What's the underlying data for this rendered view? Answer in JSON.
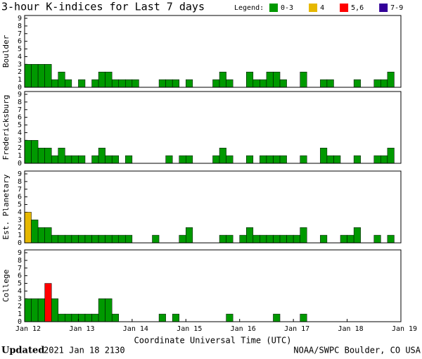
{
  "header": {
    "title": "3-hour K-indices for Last 7 days",
    "legend_label": "Legend:",
    "legend": [
      {
        "label": "0-3",
        "color": "#009900",
        "range": [
          0,
          3
        ]
      },
      {
        "label": "4",
        "color": "#e6b800",
        "range": [
          4,
          4
        ]
      },
      {
        "label": "5,6",
        "color": "#ff0000",
        "range": [
          5,
          6
        ]
      },
      {
        "label": "7-9",
        "color": "#330099",
        "range": [
          7,
          9
        ]
      }
    ]
  },
  "chart_data": [
    {
      "type": "bar",
      "ylabel": "Boulder",
      "ylim": [
        0,
        9
      ],
      "yticks": [
        0,
        1,
        2,
        3,
        4,
        5,
        6,
        7,
        8,
        9
      ],
      "values": [
        3,
        3,
        3,
        3,
        1,
        2,
        1,
        0,
        1,
        0,
        1,
        2,
        2,
        1,
        1,
        1,
        1,
        0,
        0,
        0,
        1,
        1,
        1,
        0,
        1,
        0,
        0,
        0,
        1,
        2,
        1,
        0,
        0,
        2,
        1,
        1,
        2,
        2,
        1,
        0,
        0,
        2,
        0,
        0,
        1,
        1,
        0,
        0,
        0,
        1,
        0,
        0,
        1,
        1,
        2,
        0
      ]
    },
    {
      "type": "bar",
      "ylabel": "Fredericksburg",
      "ylim": [
        0,
        9
      ],
      "yticks": [
        0,
        1,
        2,
        3,
        4,
        5,
        6,
        7,
        8,
        9
      ],
      "values": [
        3,
        3,
        2,
        2,
        1,
        2,
        1,
        1,
        1,
        0,
        1,
        2,
        1,
        1,
        0,
        1,
        0,
        0,
        0,
        0,
        0,
        1,
        0,
        1,
        1,
        0,
        0,
        0,
        1,
        2,
        1,
        0,
        0,
        1,
        0,
        1,
        1,
        1,
        1,
        0,
        0,
        1,
        0,
        0,
        2,
        1,
        1,
        0,
        0,
        1,
        0,
        0,
        1,
        1,
        2,
        0
      ]
    },
    {
      "type": "bar",
      "ylabel": "Est. Planetary",
      "ylim": [
        0,
        9
      ],
      "yticks": [
        0,
        1,
        2,
        3,
        4,
        5,
        6,
        7,
        8,
        9
      ],
      "values": [
        4,
        3,
        2,
        2,
        1,
        1,
        1,
        1,
        1,
        1,
        1,
        1,
        1,
        1,
        1,
        1,
        0,
        0,
        0,
        1,
        0,
        0,
        0,
        1,
        2,
        0,
        0,
        0,
        0,
        1,
        1,
        0,
        1,
        2,
        1,
        1,
        1,
        1,
        1,
        1,
        1,
        2,
        0,
        0,
        1,
        0,
        0,
        1,
        1,
        2,
        0,
        0,
        1,
        0,
        1,
        0
      ]
    },
    {
      "type": "bar",
      "ylabel": "College",
      "ylim": [
        0,
        9
      ],
      "yticks": [
        0,
        1,
        2,
        3,
        4,
        5,
        6,
        7,
        8,
        9
      ],
      "values": [
        3,
        3,
        3,
        5,
        3,
        1,
        1,
        1,
        1,
        1,
        1,
        3,
        3,
        1,
        0,
        0,
        0,
        0,
        0,
        0,
        1,
        0,
        1,
        0,
        0,
        0,
        0,
        0,
        0,
        0,
        1,
        0,
        0,
        0,
        0,
        0,
        0,
        1,
        0,
        0,
        0,
        1,
        0,
        0,
        0,
        0,
        0,
        0,
        0,
        0,
        0,
        0,
        0,
        0,
        0,
        0
      ],
      "xticks": [
        "Jan 12",
        "Jan 13",
        "Jan 14",
        "Jan 15",
        "Jan 16",
        "Jan 17",
        "Jan 18",
        "Jan 19"
      ],
      "xlabel": "Coordinate Universal Time (UTC)"
    }
  ],
  "footer": {
    "updated_label": "Updated",
    "updated": "2021 Jan 18 2130",
    "source": "NOAA/SWPC Boulder, CO USA"
  }
}
